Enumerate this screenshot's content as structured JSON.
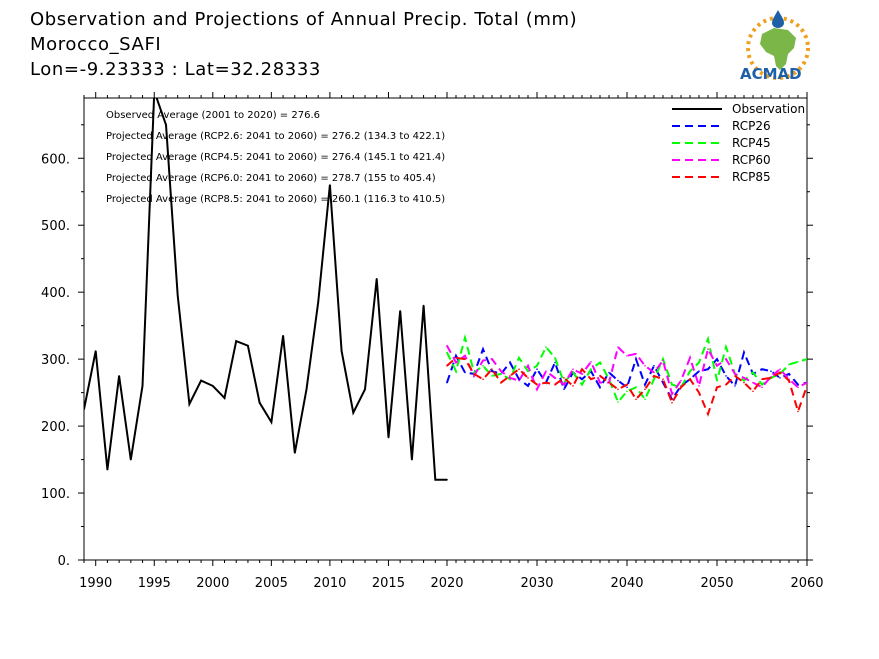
{
  "title": {
    "line1": "Observation and Projections of Annual Precip. Total (mm)",
    "line2": "Morocco_SAFI",
    "line3": "Lon=-9.23333 : Lat=32.28333"
  },
  "logo": {
    "text": "ACMAD",
    "colors": {
      "africa": "#7ab648",
      "drop": "#1f5fa8",
      "sun": "#f0a020"
    }
  },
  "chart_data": {
    "type": "line",
    "xlim": [
      1989,
      2060
    ],
    "ylim": [
      0,
      690
    ],
    "x_ticks": [
      1990,
      1995,
      2000,
      2005,
      2010,
      2015,
      2020,
      2030,
      2040,
      2050,
      2060
    ],
    "y_ticks": [
      0,
      100,
      200,
      300,
      400,
      500,
      600
    ],
    "y_tick_labels": [
      "0.",
      "100.",
      "200.",
      "300.",
      "400.",
      "500.",
      "600."
    ],
    "annotations": [
      "Observed Average (2001 to 2020) = 276.6",
      "Projected Average (RCP2.6: 2041 to 2060) = 276.2 (134.3 to 422.1)",
      "Projected Average (RCP4.5: 2041 to 2060) = 276.4 (145.1 to 421.4)",
      "Projected Average (RCP6.0: 2041 to 2060) = 278.7 (155 to 405.4)",
      "Projected Average (RCP8.5: 2041 to 2060) = 260.1 (116.3 to 410.5)"
    ],
    "series": [
      {
        "name": "Observation",
        "color": "#000000",
        "dashed": false,
        "x": [
          1989,
          1990,
          1991,
          1992,
          1993,
          1994,
          1995,
          1996,
          1997,
          1998,
          1999,
          2000,
          2001,
          2002,
          2003,
          2004,
          2005,
          2006,
          2007,
          2008,
          2009,
          2010,
          2011,
          2012,
          2013,
          2014,
          2015,
          2016,
          2017,
          2018,
          2019,
          2020
        ],
        "values": [
          225,
          312,
          135,
          275,
          150,
          260,
          700,
          650,
          395,
          233,
          268,
          260,
          242,
          327,
          320,
          235,
          206,
          335,
          160,
          255,
          385,
          560,
          312,
          220,
          255,
          420,
          183,
          372,
          150,
          380,
          120,
          120
        ]
      },
      {
        "name": "RCP26",
        "color": "#0000ff",
        "dashed": true,
        "x": [
          2020,
          2021,
          2022,
          2023,
          2024,
          2025,
          2026,
          2027,
          2028,
          2029,
          2030,
          2031,
          2032,
          2033,
          2034,
          2035,
          2036,
          2037,
          2038,
          2039,
          2040,
          2041,
          2042,
          2043,
          2044,
          2045,
          2046,
          2047,
          2048,
          2049,
          2050,
          2051,
          2052,
          2053,
          2054,
          2055,
          2056,
          2057,
          2058,
          2059,
          2060
        ],
        "values": [
          265,
          305,
          280,
          278,
          315,
          282,
          278,
          295,
          270,
          260,
          285,
          265,
          295,
          255,
          280,
          270,
          282,
          258,
          280,
          268,
          258,
          300,
          262,
          290,
          265,
          240,
          260,
          270,
          282,
          285,
          300,
          275,
          260,
          310,
          278,
          285,
          282,
          272,
          278,
          262,
          265
        ]
      },
      {
        "name": "RCP45",
        "color": "#00ff00",
        "dashed": true,
        "x": [
          2020,
          2021,
          2022,
          2023,
          2024,
          2025,
          2026,
          2027,
          2028,
          2029,
          2030,
          2031,
          2032,
          2033,
          2034,
          2035,
          2036,
          2037,
          2038,
          2039,
          2040,
          2041,
          2042,
          2043,
          2044,
          2045,
          2046,
          2047,
          2048,
          2049,
          2050,
          2051,
          2052,
          2053,
          2054,
          2055,
          2056,
          2057,
          2058,
          2059,
          2060
        ],
        "values": [
          310,
          282,
          332,
          280,
          290,
          275,
          278,
          270,
          302,
          282,
          290,
          318,
          302,
          265,
          280,
          262,
          285,
          295,
          270,
          236,
          252,
          258,
          240,
          270,
          300,
          262,
          258,
          282,
          295,
          330,
          268,
          318,
          278,
          268,
          280,
          262,
          272,
          278,
          292,
          296,
          300
        ]
      },
      {
        "name": "RCP60",
        "color": "#ff00ff",
        "dashed": true,
        "x": [
          2020,
          2021,
          2022,
          2023,
          2024,
          2025,
          2026,
          2027,
          2028,
          2029,
          2030,
          2031,
          2032,
          2033,
          2034,
          2035,
          2036,
          2037,
          2038,
          2039,
          2040,
          2041,
          2042,
          2043,
          2044,
          2045,
          2046,
          2047,
          2048,
          2049,
          2050,
          2051,
          2052,
          2053,
          2054,
          2055,
          2056,
          2057,
          2058,
          2059,
          2060
        ],
        "values": [
          320,
          295,
          305,
          275,
          298,
          300,
          282,
          272,
          268,
          290,
          255,
          282,
          272,
          262,
          285,
          278,
          296,
          265,
          265,
          318,
          305,
          308,
          290,
          280,
          298,
          248,
          268,
          302,
          260,
          315,
          290,
          300,
          278,
          272,
          265,
          258,
          274,
          285,
          270,
          258,
          265
        ]
      },
      {
        "name": "RCP85",
        "color": "#ff0000",
        "dashed": true,
        "x": [
          2020,
          2021,
          2022,
          2023,
          2024,
          2025,
          2026,
          2027,
          2028,
          2029,
          2030,
          2031,
          2032,
          2033,
          2034,
          2035,
          2036,
          2037,
          2038,
          2039,
          2040,
          2041,
          2042,
          2043,
          2044,
          2045,
          2046,
          2047,
          2048,
          2049,
          2050,
          2051,
          2052,
          2053,
          2054,
          2055,
          2056,
          2057,
          2058,
          2059,
          2060
        ],
        "values": [
          290,
          302,
          300,
          278,
          270,
          285,
          265,
          275,
          285,
          272,
          262,
          265,
          262,
          272,
          260,
          285,
          270,
          275,
          265,
          255,
          262,
          240,
          255,
          275,
          270,
          235,
          258,
          270,
          250,
          218,
          258,
          262,
          275,
          265,
          252,
          270,
          272,
          280,
          268,
          222,
          260
        ]
      }
    ],
    "grid": false,
    "legend_position": "top-right"
  }
}
